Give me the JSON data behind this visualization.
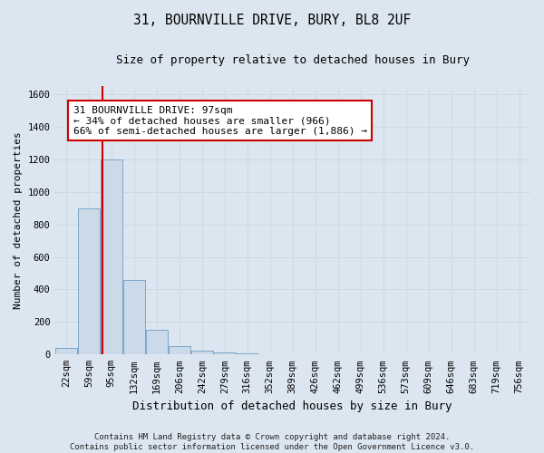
{
  "title_line1": "31, BOURNVILLE DRIVE, BURY, BL8 2UF",
  "title_line2": "Size of property relative to detached houses in Bury",
  "xlabel": "Distribution of detached houses by size in Bury",
  "ylabel": "Number of detached properties",
  "footer": "Contains HM Land Registry data © Crown copyright and database right 2024.\nContains public sector information licensed under the Open Government Licence v3.0.",
  "bin_labels": [
    "22sqm",
    "59sqm",
    "95sqm",
    "132sqm",
    "169sqm",
    "206sqm",
    "242sqm",
    "279sqm",
    "316sqm",
    "352sqm",
    "389sqm",
    "426sqm",
    "462sqm",
    "499sqm",
    "536sqm",
    "573sqm",
    "609sqm",
    "646sqm",
    "683sqm",
    "719sqm",
    "756sqm"
  ],
  "bar_values": [
    40,
    900,
    1200,
    460,
    150,
    50,
    25,
    15,
    10,
    0,
    0,
    0,
    0,
    0,
    0,
    0,
    0,
    0,
    0,
    0,
    0
  ],
  "bar_color": "#ccd9e8",
  "bar_edge_color": "#7ba7cc",
  "ylim": [
    0,
    1650
  ],
  "yticks": [
    0,
    200,
    400,
    600,
    800,
    1000,
    1200,
    1400,
    1600
  ],
  "vline_color": "#cc0000",
  "vline_x": 1.62,
  "annotation_text": "31 BOURNVILLE DRIVE: 97sqm\n← 34% of detached houses are smaller (966)\n66% of semi-detached houses are larger (1,886) →",
  "annotation_box_color": "#ffffff",
  "annotation_box_edge": "#cc0000",
  "grid_color": "#d0d8e0",
  "bg_color": "#dce6f0",
  "title_fontsize": 10.5,
  "subtitle_fontsize": 9,
  "ylabel_fontsize": 8,
  "xlabel_fontsize": 9,
  "tick_fontsize": 7.5,
  "footer_fontsize": 6.5,
  "annot_fontsize": 8
}
